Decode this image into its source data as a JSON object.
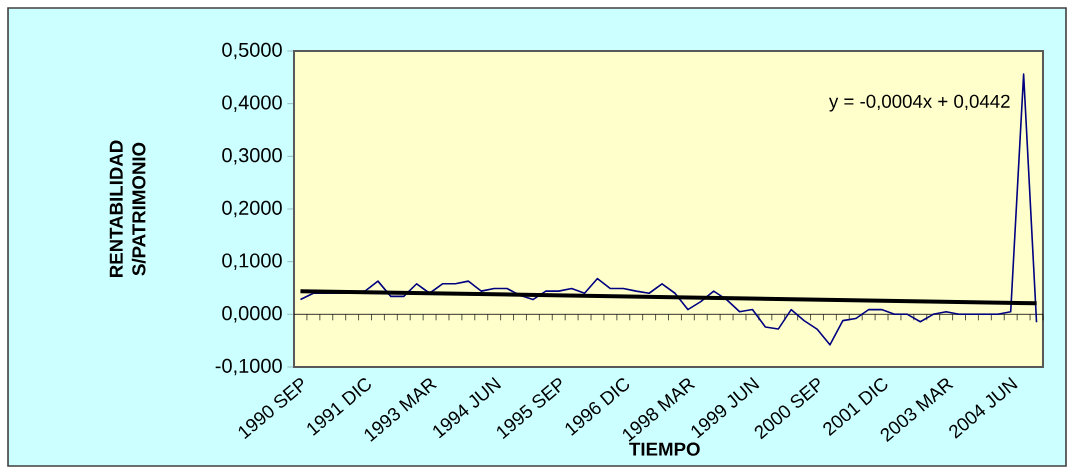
{
  "chart_data": {
    "type": "line",
    "xlabel": "TIEMPO",
    "ylabel": "RENTABILIDAD S/PATRIMONIO",
    "annotations": [
      "y = -0,0004x + 0,0442"
    ],
    "categories": [
      "1990 SEP",
      null,
      null,
      null,
      null,
      "1991 DIC",
      null,
      null,
      null,
      null,
      "1993 MAR",
      null,
      null,
      null,
      null,
      "1994 JUN",
      null,
      null,
      null,
      null,
      "1995 SEP",
      null,
      null,
      null,
      null,
      "1996 DIC",
      null,
      null,
      null,
      null,
      "1998 MAR",
      null,
      null,
      null,
      null,
      "1999 JUN",
      null,
      null,
      null,
      null,
      "2000 SEP",
      null,
      null,
      null,
      null,
      "2001 DIC",
      null,
      null,
      null,
      null,
      "2003 MAR",
      null,
      null,
      null,
      null,
      "2004 JUN",
      null,
      null
    ],
    "series": [
      {
        "color": "#000080",
        "values": [
          0.028,
          0.04,
          0.04,
          0.04,
          0.04,
          0.044,
          0.063,
          0.034,
          0.034,
          0.058,
          0.04,
          0.058,
          0.058,
          0.063,
          0.044,
          0.049,
          0.049,
          0.036,
          0.028,
          0.044,
          0.044,
          0.049,
          0.04,
          0.068,
          0.049,
          0.049,
          0.044,
          0.04,
          0.058,
          0.04,
          0.009,
          0.024,
          0.044,
          0.028,
          0.005,
          0.009,
          -0.024,
          -0.028,
          0.009,
          -0.012,
          -0.028,
          -0.058,
          -0.012,
          -0.008,
          0.009,
          0.009,
          0.0,
          0.0,
          -0.014,
          0.0,
          0.005,
          0.0,
          0.0,
          0.0,
          0.0,
          0.005,
          0.456,
          -0.015
        ]
      },
      {
        "type": "line",
        "color": "#000000",
        "values": [
          0.044,
          null,
          null,
          null,
          null,
          null,
          null,
          null,
          null,
          null,
          null,
          null,
          null,
          null,
          null,
          null,
          null,
          null,
          null,
          null,
          null,
          null,
          null,
          null,
          null,
          null,
          null,
          null,
          null,
          null,
          null,
          null,
          null,
          null,
          null,
          null,
          null,
          null,
          null,
          null,
          null,
          null,
          null,
          null,
          null,
          null,
          null,
          null,
          null,
          null,
          null,
          null,
          null,
          null,
          null,
          null,
          null,
          0.021
        ]
      }
    ],
    "ylim": [
      -0.1,
      0.5
    ],
    "yticks": [
      {
        "value": -0.1,
        "label": "-0,1000"
      },
      {
        "value": 0.0,
        "label": "0,0000"
      },
      {
        "value": 0.1,
        "label": "0,1000"
      },
      {
        "value": 0.2,
        "label": "0,2000"
      },
      {
        "value": 0.3,
        "label": "0,3000"
      },
      {
        "value": 0.4,
        "label": "0,4000"
      },
      {
        "value": 0.5,
        "label": "0,5000"
      }
    ],
    "marker": "none",
    "line_style": "solid"
  }
}
